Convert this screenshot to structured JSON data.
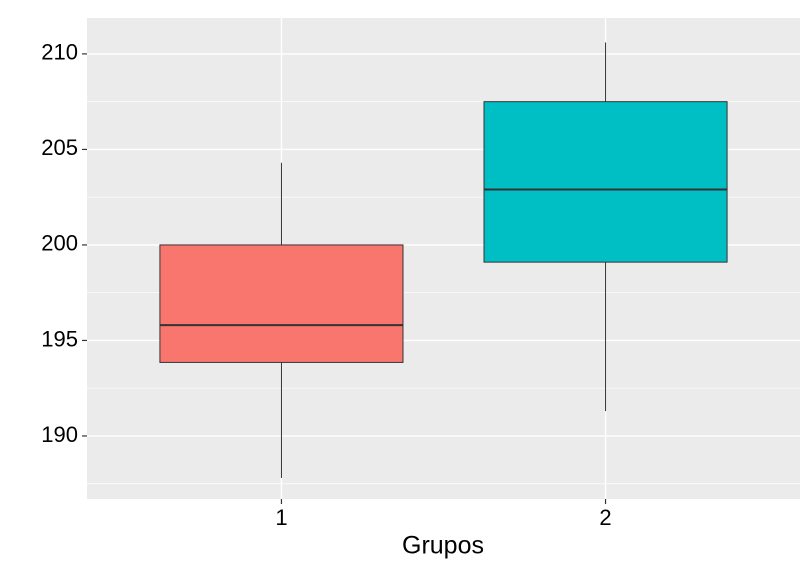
{
  "chart_data": {
    "type": "box",
    "x_label": "Grupos",
    "categories": [
      "1",
      "2"
    ],
    "boxes": [
      {
        "min": 187.8,
        "q1": 193.85,
        "median": 195.8,
        "q3": 200.0,
        "max": 204.3,
        "color": "#F8766D"
      },
      {
        "min": 191.3,
        "q1": 199.1,
        "median": 202.9,
        "q3": 207.5,
        "max": 210.6,
        "color": "#00BFC4"
      }
    ],
    "ylim": [
      186.7,
      211.88
    ],
    "yticks": [
      190,
      195,
      200,
      205,
      210
    ],
    "minor_yticks": [
      187.5,
      192.5,
      197.5,
      202.5,
      207.5
    ],
    "grid": true
  }
}
